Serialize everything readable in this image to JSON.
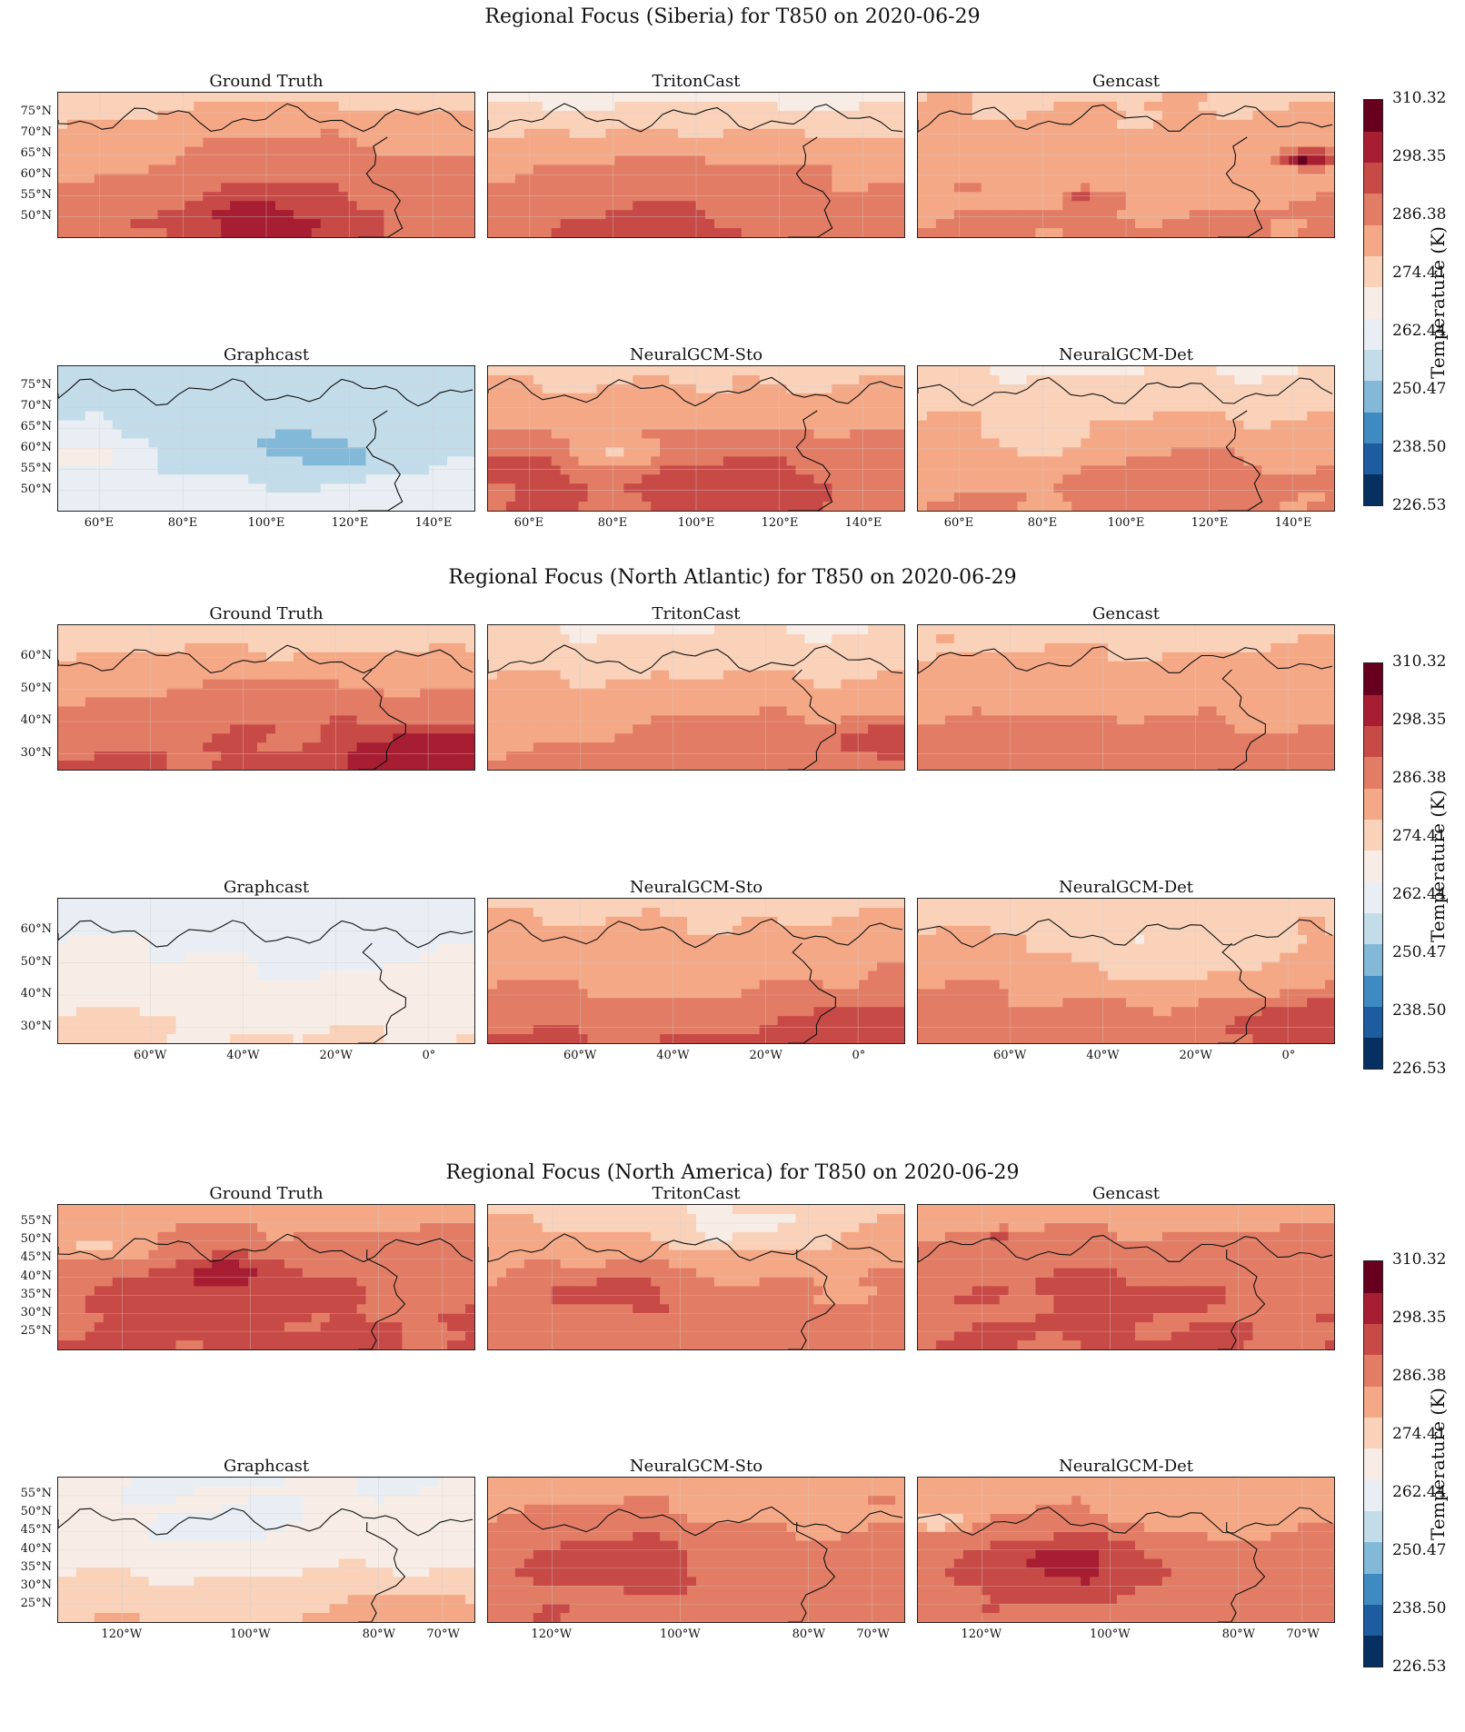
{
  "colors": {
    "scale": [
      "#053061",
      "#1c5c9f",
      "#3f8bc1",
      "#83b9d8",
      "#c3dcea",
      "#e8eef3",
      "#f7ede6",
      "#fad2ba",
      "#f5a886",
      "#e27c64",
      "#c84a47",
      "#a71d31",
      "#67001f"
    ],
    "coast": "#111111",
    "grid": "#cfcfcf"
  },
  "chart_data": [
    {
      "type": "heatmap",
      "title": "Regional Focus (Siberia) for T850 on 2020-06-29",
      "region": "Siberia",
      "variable": "T850",
      "date": "2020-06-29",
      "panels": [
        "Ground Truth",
        "TritonCast",
        "Gencast",
        "Graphcast",
        "NeuralGCM-Sto",
        "NeuralGCM-Det"
      ],
      "lon_range": [
        50,
        150
      ],
      "lat_range": [
        45,
        80
      ],
      "y_ticks": [
        50,
        55,
        60,
        65,
        70,
        75
      ],
      "y_tick_labels": [
        "50°N",
        "55°N",
        "60°N",
        "65°N",
        "70°N",
        "75°N"
      ],
      "x_ticks": [
        60,
        80,
        100,
        120,
        140
      ],
      "x_tick_labels": [
        "60°E",
        "80°E",
        "100°E",
        "120°E",
        "140°E"
      ],
      "colorbar": {
        "label": "Temperature (K)",
        "min": 226.53,
        "max": 310.32,
        "tick_labels": [
          "310.32",
          "298.35",
          "286.38",
          "274.41",
          "262.44",
          "250.47",
          "238.50",
          "226.53"
        ]
      },
      "fields": {
        "Ground Truth": {
          "base": 283,
          "north_delta": -9,
          "south_delta": 6,
          "blobs": [
            [
              0.5,
              0.9,
              0.14,
              12
            ],
            [
              0.5,
              0.45,
              0.28,
              6
            ],
            [
              0.12,
              0.45,
              0.1,
              -6
            ]
          ]
        },
        "TritonCast": {
          "base": 282,
          "north_delta": -14,
          "south_delta": 6,
          "blobs": [
            [
              0.5,
              0.5,
              0.3,
              4
            ],
            [
              0.4,
              0.95,
              0.15,
              6
            ]
          ]
        },
        "Gencast": {
          "base": 282,
          "north_delta": -5,
          "south_delta": 4,
          "blobs": [
            [
              0.95,
              0.45,
              0.04,
              18
            ],
            [
              0.4,
              0.7,
              0.02,
              18
            ],
            [
              0.9,
              0.45,
              0.03,
              14
            ]
          ]
        },
        "Graphcast": {
          "base": 258,
          "north_delta": -2,
          "south_delta": 6,
          "blobs": [
            [
              0.55,
              0.6,
              0.2,
              -6
            ],
            [
              0.68,
              0.62,
              0.06,
              -8
            ],
            [
              0.05,
              0.6,
              0.1,
              8
            ]
          ]
        },
        "NeuralGCM-Sto": {
          "base": 284,
          "north_delta": -8,
          "south_delta": 6,
          "blobs": [
            [
              0.3,
              0.6,
              0.08,
              -10
            ],
            [
              0.6,
              0.75,
              0.2,
              6
            ],
            [
              0.05,
              0.7,
              0.15,
              6
            ]
          ]
        },
        "NeuralGCM-Det": {
          "base": 281,
          "north_delta": -10,
          "south_delta": 4,
          "blobs": [
            [
              0.3,
              0.5,
              0.1,
              -7
            ],
            [
              0.65,
              0.8,
              0.15,
              7
            ]
          ]
        }
      }
    },
    {
      "type": "heatmap",
      "title": "Regional Focus (North Atlantic) for T850 on 2020-06-29",
      "region": "North Atlantic",
      "variable": "T850",
      "date": "2020-06-29",
      "panels": [
        "Ground Truth",
        "TritonCast",
        "Gencast",
        "Graphcast",
        "NeuralGCM-Sto",
        "NeuralGCM-Det"
      ],
      "lon_range": [
        -80,
        10
      ],
      "lat_range": [
        25,
        70
      ],
      "y_ticks": [
        30,
        40,
        50,
        60
      ],
      "y_tick_labels": [
        "30°N",
        "40°N",
        "50°N",
        "60°N"
      ],
      "x_ticks": [
        -60,
        -40,
        -20,
        0
      ],
      "x_tick_labels": [
        "60°W",
        "40°W",
        "20°W",
        "0°"
      ],
      "colorbar": {
        "label": "Temperature (K)",
        "min": 226.53,
        "max": 310.32,
        "tick_labels": [
          "310.32",
          "298.35",
          "286.38",
          "274.41",
          "262.44",
          "250.47",
          "238.50",
          "226.53"
        ]
      },
      "fields": {
        "Ground Truth": {
          "base": 284,
          "north_delta": -10,
          "south_delta": 8,
          "blobs": [
            [
              0.9,
              0.9,
              0.15,
              14
            ],
            [
              0.5,
              0.55,
              0.2,
              4
            ]
          ]
        },
        "TritonCast": {
          "base": 281,
          "north_delta": -10,
          "south_delta": 5,
          "blobs": [
            [
              0.95,
              0.8,
              0.12,
              10
            ],
            [
              0.5,
              0.7,
              0.15,
              3
            ]
          ]
        },
        "Gencast": {
          "base": 282,
          "north_delta": -6,
          "south_delta": 6,
          "blobs": [
            [
              0.3,
              0.75,
              0.08,
              5
            ],
            [
              0.6,
              0.8,
              0.08,
              5
            ]
          ]
        },
        "Graphcast": {
          "base": 268,
          "north_delta": -6,
          "south_delta": 4,
          "blobs": [
            [
              0.6,
              0.45,
              0.2,
              -3
            ],
            [
              0.1,
              0.9,
              0.1,
              5
            ]
          ]
        },
        "NeuralGCM-Sto": {
          "base": 284,
          "north_delta": -8,
          "south_delta": 8,
          "blobs": [
            [
              0.9,
              0.9,
              0.12,
              8
            ],
            [
              0.5,
              0.6,
              0.2,
              -3
            ]
          ]
        },
        "NeuralGCM-Det": {
          "base": 283,
          "north_delta": -8,
          "south_delta": 6,
          "blobs": [
            [
              0.6,
              0.4,
              0.18,
              -9
            ],
            [
              0.95,
              0.85,
              0.12,
              10
            ]
          ]
        }
      }
    },
    {
      "type": "heatmap",
      "title": "Regional Focus (North America) for T850 on 2020-06-29",
      "region": "North America",
      "variable": "T850",
      "date": "2020-06-29",
      "panels": [
        "Ground Truth",
        "TritonCast",
        "Gencast",
        "Graphcast",
        "NeuralGCM-Sto",
        "NeuralGCM-Det"
      ],
      "lon_range": [
        -130,
        -65
      ],
      "lat_range": [
        20,
        60
      ],
      "y_ticks": [
        25,
        30,
        35,
        40,
        45,
        50,
        55
      ],
      "y_tick_labels": [
        "25°N",
        "30°N",
        "35°N",
        "40°N",
        "45°N",
        "50°N",
        "55°N"
      ],
      "x_ticks": [
        -120,
        -100,
        -80,
        -70
      ],
      "x_tick_labels": [
        "120°W",
        "100°W",
        "80°W",
        "70°W"
      ],
      "colorbar": {
        "label": "Temperature (K)",
        "min": 226.53,
        "max": 310.32,
        "tick_labels": [
          "310.32",
          "298.35",
          "286.38",
          "274.41",
          "262.44",
          "250.47",
          "238.50",
          "226.53"
        ]
      },
      "fields": {
        "Ground Truth": {
          "base": 288,
          "north_delta": -6,
          "south_delta": 4,
          "blobs": [
            [
              0.4,
              0.55,
              0.18,
              8
            ],
            [
              0.4,
              0.45,
              0.06,
              6
            ],
            [
              0.1,
              0.3,
              0.08,
              -10
            ]
          ]
        },
        "TritonCast": {
          "base": 284,
          "north_delta": -8,
          "south_delta": 4,
          "blobs": [
            [
              0.3,
              0.6,
              0.15,
              8
            ],
            [
              0.6,
              0.15,
              0.15,
              -8
            ]
          ]
        },
        "Gencast": {
          "base": 288,
          "north_delta": -6,
          "south_delta": 3,
          "blobs": [
            [
              0.2,
              0.2,
              0.02,
              20
            ],
            [
              0.45,
              0.6,
              0.2,
              4
            ]
          ]
        },
        "Graphcast": {
          "base": 268,
          "north_delta": -3,
          "south_delta": 10,
          "blobs": [
            [
              0.4,
              0.35,
              0.12,
              -4
            ],
            [
              0.85,
              0.85,
              0.15,
              4
            ]
          ]
        },
        "NeuralGCM-Sto": {
          "base": 287,
          "north_delta": -5,
          "south_delta": 3,
          "blobs": [
            [
              0.3,
              0.55,
              0.15,
              8
            ],
            [
              0.75,
              0.25,
              0.1,
              -3
            ]
          ]
        },
        "NeuralGCM-Det": {
          "base": 287,
          "north_delta": -6,
          "south_delta": 2,
          "blobs": [
            [
              0.35,
              0.6,
              0.16,
              12
            ],
            [
              0.05,
              0.3,
              0.06,
              -12
            ],
            [
              0.65,
              0.3,
              0.1,
              -4
            ]
          ]
        }
      }
    }
  ]
}
